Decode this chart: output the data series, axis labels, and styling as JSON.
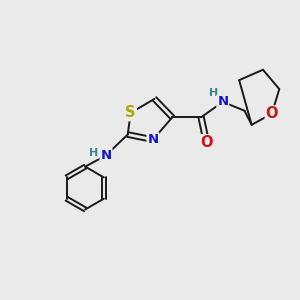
{
  "bg_color": "#eaeaea",
  "bond_color": "#1a1a1a",
  "bond_lw": 1.4,
  "dbo": 0.07,
  "atom_colors": {
    "S": "#aaaa00",
    "N": "#1515cc",
    "O": "#cc1515",
    "H": "#3a8888"
  },
  "fs": 9.5,
  "hfs": 8.0,
  "xlim": [
    0,
    10
  ],
  "ylim": [
    0,
    10
  ]
}
